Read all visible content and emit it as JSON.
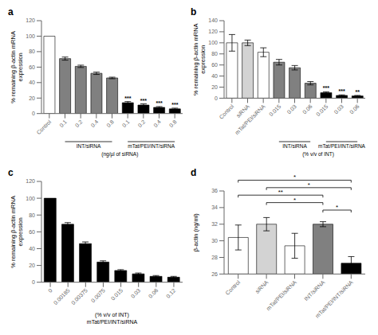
{
  "chart_data": [
    {
      "type": "bar",
      "title": "a",
      "ylabel": "% remaining β-actin mRNA\nexpression",
      "xlabel": "(ng/µl of siRNA)",
      "categories": [
        "Control",
        "0.1",
        "0.2",
        "0.4",
        "0.8",
        "0.1",
        "0.2",
        "0.4",
        "0.8"
      ],
      "values": [
        100,
        71,
        61,
        52,
        46,
        14,
        11,
        8,
        6
      ],
      "errors": [
        0,
        2,
        1.5,
        1.5,
        1,
        1.5,
        1.5,
        1,
        1
      ],
      "colors": [
        "white",
        "gray",
        "gray",
        "gray",
        "gray",
        "black",
        "black",
        "black",
        "black"
      ],
      "significance": [
        null,
        null,
        null,
        null,
        null,
        "***",
        "***",
        "***",
        "***"
      ],
      "groups": [
        null,
        "INT/siRNA",
        "INT/siRNA",
        "INT/siRNA",
        "INT/siRNA",
        "mTat/PEI/INT/siRNA",
        "mTat/PEI/INT/siRNA",
        "mTat/PEI/INT/siRNA",
        "mTat/PEI/INT/siRNA"
      ],
      "ylim": [
        0,
        120
      ],
      "yticks": [
        0,
        20,
        40,
        60,
        80,
        100,
        120
      ]
    },
    {
      "type": "bar",
      "title": "b",
      "ylabel": "% remaining β-actin mRNA\nexpression",
      "xlabel": "(% v/v of INT)",
      "categories": [
        "Control",
        "siRNA",
        "mTat/PEI/siRNA",
        "0.015",
        "0.03",
        "0.06",
        "0.015",
        "0.03",
        "0.06"
      ],
      "values": [
        100,
        100,
        83,
        65,
        55,
        27,
        10,
        5,
        4
      ],
      "errors": [
        15,
        5,
        8,
        5,
        4,
        3,
        1.5,
        1,
        1
      ],
      "colors": [
        "white",
        "lightgray",
        "white",
        "gray",
        "gray",
        "gray",
        "black",
        "black",
        "black"
      ],
      "significance": [
        null,
        null,
        null,
        null,
        null,
        null,
        "***",
        "***",
        "**"
      ],
      "groups": [
        null,
        null,
        null,
        "INT/siRNA",
        "INT/siRNA",
        "INT/siRNA",
        "mTat/PEI/INT/siRNA",
        "mTat/PEI/INT/siRNA",
        "mTat/PEI/INT/siRNA"
      ],
      "ylim": [
        0,
        140
      ],
      "yticks": [
        0,
        20,
        40,
        60,
        80,
        100,
        120,
        140
      ]
    },
    {
      "type": "bar",
      "title": "c",
      "ylabel": "% remaining β-actin mRNA\nexpression",
      "xlabel": "(% v/v of INT)\nmTat/PEI/INT/siRNA",
      "categories": [
        "0",
        "0.00185",
        "0.00375",
        "0.0075",
        "0.015",
        "0.03",
        "0.06",
        "0.12"
      ],
      "values": [
        100,
        69,
        46,
        24,
        14,
        10,
        7,
        6
      ],
      "errors": [
        0,
        2,
        2,
        1.5,
        1,
        1,
        1,
        1
      ],
      "colors": [
        "black",
        "black",
        "black",
        "black",
        "black",
        "black",
        "black",
        "black"
      ],
      "ylim": [
        0,
        120
      ],
      "yticks": [
        0,
        20,
        40,
        60,
        80,
        100,
        120
      ]
    },
    {
      "type": "bar",
      "title": "d",
      "ylabel": "β-actin (ng/ml)",
      "categories": [
        "Control",
        "siRNA",
        "mTat/PEI/siRNA",
        "INT/siRNA",
        "mTat/PEI/INT/siRNA"
      ],
      "values": [
        30.4,
        32.0,
        29.4,
        32.0,
        27.3
      ],
      "errors": [
        1.5,
        0.8,
        1.5,
        0.3,
        0.8
      ],
      "colors": [
        "white",
        "lightgray",
        "white",
        "gray",
        "black"
      ],
      "comparisons": [
        {
          "from": "Control",
          "to": "mTat/PEI/INT/siRNA",
          "label": "*"
        },
        {
          "from": "Control",
          "to": "INT/siRNA",
          "label": "**"
        },
        {
          "from": "siRNA",
          "to": "INT/siRNA",
          "label": "*"
        },
        {
          "from": "siRNA",
          "to": "mTat/PEI/INT/siRNA",
          "label": "*"
        },
        {
          "from": "INT/siRNA",
          "to": "mTat/PEI/INT/siRNA",
          "label": "*"
        }
      ],
      "ylim": [
        26,
        36
      ],
      "yticks": [
        26,
        28,
        30,
        32,
        34,
        36
      ]
    }
  ]
}
